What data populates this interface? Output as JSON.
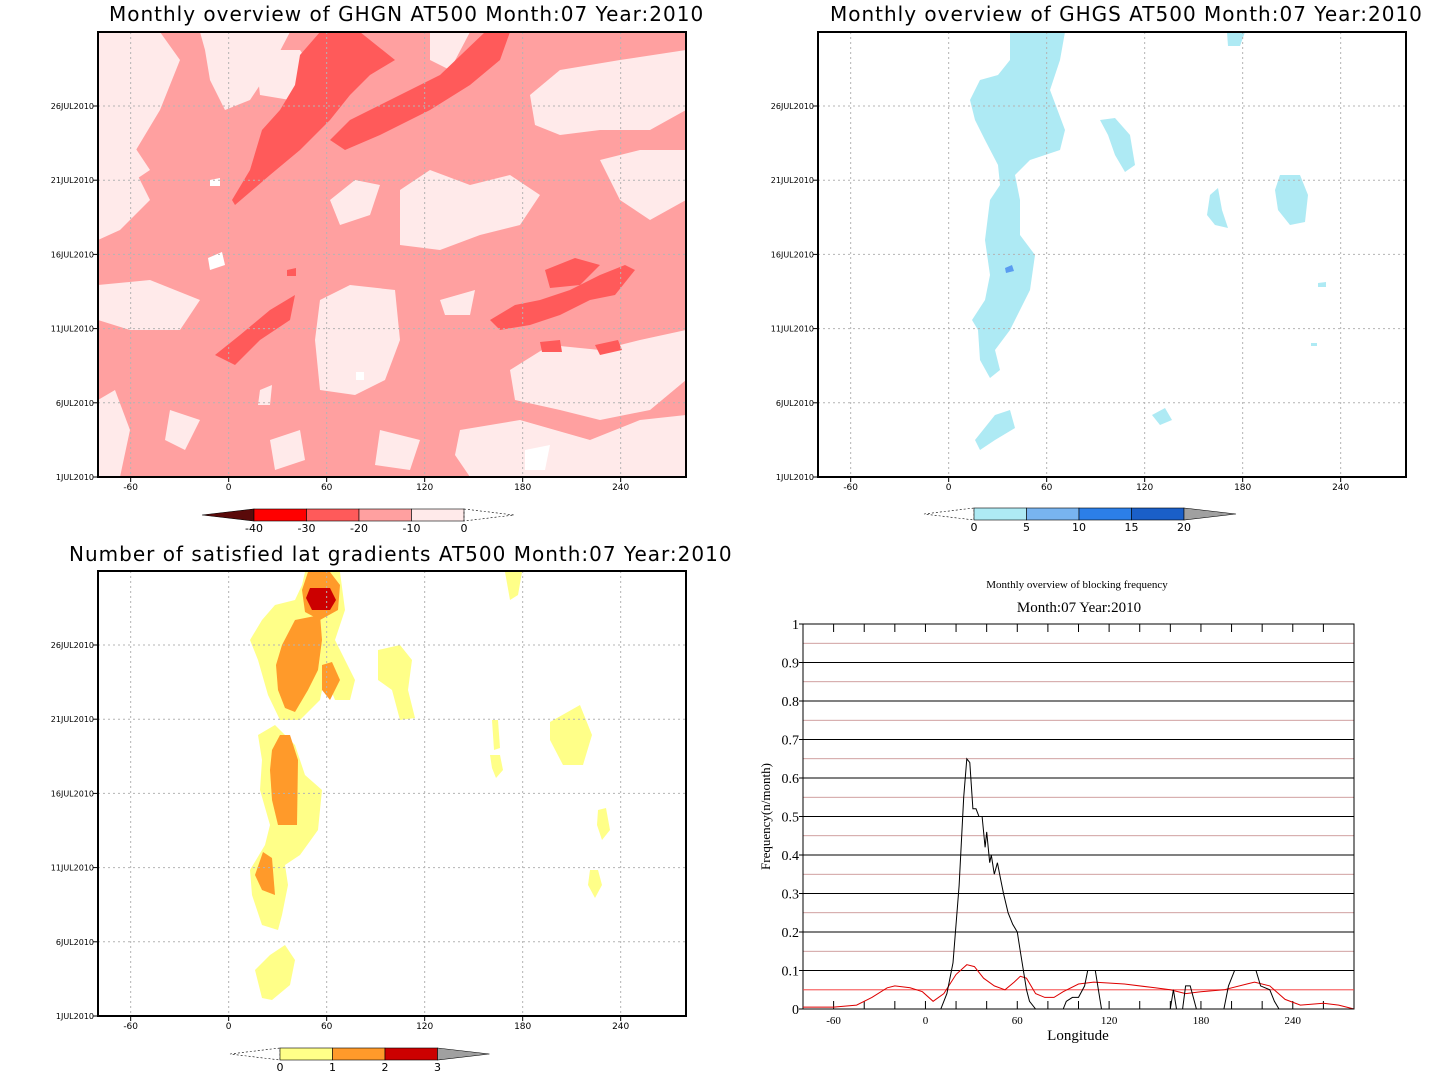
{
  "chart_data": [
    {
      "type": "heatmap",
      "title": "Monthly overview of GHGN AT500 Month:07 Year:2010",
      "xlabel": "",
      "ylabel": "",
      "xlim": [
        -80,
        280
      ],
      "x_ticks": [
        "-60",
        "0",
        "60",
        "120",
        "180",
        "240"
      ],
      "y_ticks": [
        "1JUL2010",
        "6JUL2010",
        "11JUL2010",
        "16JUL2010",
        "21JUL2010",
        "26JUL2010"
      ],
      "grid": true,
      "colorbar": {
        "labels": [
          "-40",
          "-30",
          "-20",
          "-10",
          "0"
        ],
        "colors": [
          "#5a0a0a",
          "#ff0000",
          "#ff5a5a",
          "#ffa0a0",
          "#ffeaea"
        ],
        "values": [
          -40,
          -30,
          -20,
          -10,
          0
        ]
      },
      "field_colors": {
        "bg": "#ffa0a0",
        "light": "#ffeaea",
        "mid": "#ff5a5a",
        "min": "#ffffff"
      }
    },
    {
      "type": "heatmap",
      "title": "Monthly overview of GHGS AT500 Month:07 Year:2010",
      "xlabel": "",
      "ylabel": "",
      "xlim": [
        -80,
        280
      ],
      "x_ticks": [
        "-60",
        "0",
        "60",
        "120",
        "180",
        "240"
      ],
      "y_ticks": [
        "1JUL2010",
        "6JUL2010",
        "11JUL2010",
        "16JUL2010",
        "21JUL2010",
        "26JUL2010"
      ],
      "grid": true,
      "colorbar": {
        "labels": [
          "0",
          "5",
          "10",
          "15",
          "20"
        ],
        "colors": [
          "#aeeaf4",
          "#78b4f0",
          "#2c7fe8",
          "#1a5fc8",
          "#a0a0a0"
        ],
        "values": [
          0,
          5,
          10,
          15,
          20
        ]
      },
      "field_colors": {
        "low": "#aeeaf4",
        "high": "#5a9cf0"
      }
    },
    {
      "type": "heatmap",
      "title": "Number of satisfied lat gradients AT500 Month:07 Year:2010",
      "xlabel": "",
      "ylabel": "",
      "xlim": [
        -80,
        280
      ],
      "x_ticks": [
        "-60",
        "0",
        "60",
        "120",
        "180",
        "240"
      ],
      "y_ticks": [
        "1JUL2010",
        "6JUL2010",
        "11JUL2010",
        "16JUL2010",
        "21JUL2010",
        "26JUL2010"
      ],
      "grid": true,
      "colorbar": {
        "labels": [
          "0",
          "1",
          "2",
          "3"
        ],
        "colors": [
          "#ffff88",
          "#ff9a2a",
          "#cc0000",
          "#a0a0a0"
        ],
        "values": [
          0,
          1,
          2,
          3
        ]
      },
      "field_colors": {
        "one": "#ffff88",
        "two": "#ff9a2a",
        "three": "#cc0000"
      }
    },
    {
      "type": "line",
      "title": "Monthly overview of blocking frequency",
      "subtitle": "Month:07 Year:2010",
      "xlabel": "Longitude",
      "ylabel": "Frequency(n/month)",
      "xlim": [
        -80,
        280
      ],
      "ylim": [
        0,
        1
      ],
      "x_ticks": [
        "-60",
        "0",
        "60",
        "120",
        "180",
        "240"
      ],
      "y_ticks": [
        "0",
        "0.1",
        "0.2",
        "0.3",
        "0.4",
        "0.5",
        "0.6",
        "0.7",
        "0.8",
        "0.9",
        "1"
      ],
      "grid": true,
      "series": [
        {
          "color": "#000000",
          "points": [
            [
              -80,
              0
            ],
            [
              10,
              0
            ],
            [
              14,
              0.04
            ],
            [
              18,
              0.12
            ],
            [
              22,
              0.32
            ],
            [
              25,
              0.55
            ],
            [
              27,
              0.65
            ],
            [
              29,
              0.64
            ],
            [
              31,
              0.52
            ],
            [
              33,
              0.52
            ],
            [
              35,
              0.5
            ],
            [
              37,
              0.5
            ],
            [
              39,
              0.42
            ],
            [
              40,
              0.46
            ],
            [
              42,
              0.38
            ],
            [
              43,
              0.4
            ],
            [
              45,
              0.35
            ],
            [
              47,
              0.38
            ],
            [
              49,
              0.34
            ],
            [
              51,
              0.3
            ],
            [
              54,
              0.25
            ],
            [
              57,
              0.22
            ],
            [
              60,
              0.2
            ],
            [
              62,
              0.15
            ],
            [
              64,
              0.1
            ],
            [
              66,
              0.05
            ],
            [
              68,
              0.02
            ],
            [
              72,
              0
            ],
            [
              90,
              0
            ],
            [
              92,
              0.02
            ],
            [
              96,
              0.03
            ],
            [
              100,
              0.03
            ],
            [
              104,
              0.06
            ],
            [
              106,
              0.1
            ],
            [
              111,
              0.1
            ],
            [
              113,
              0.05
            ],
            [
              115,
              0
            ],
            [
              160,
              0
            ],
            [
              162,
              0.05
            ],
            [
              164,
              0
            ],
            [
              168,
              0
            ],
            [
              170,
              0.06
            ],
            [
              173,
              0.06
            ],
            [
              175,
              0.03
            ],
            [
              177,
              0
            ],
            [
              195,
              0
            ],
            [
              198,
              0.06
            ],
            [
              202,
              0.1
            ],
            [
              216,
              0.1
            ],
            [
              219,
              0.06
            ],
            [
              225,
              0.05
            ],
            [
              228,
              0.02
            ],
            [
              231,
              0
            ],
            [
              280,
              0
            ]
          ]
        },
        {
          "color": "#dd0000",
          "points": [
            [
              -80,
              0.005
            ],
            [
              -60,
              0.005
            ],
            [
              -45,
              0.01
            ],
            [
              -35,
              0.03
            ],
            [
              -25,
              0.055
            ],
            [
              -20,
              0.06
            ],
            [
              -10,
              0.055
            ],
            [
              -2,
              0.045
            ],
            [
              5,
              0.02
            ],
            [
              12,
              0.04
            ],
            [
              20,
              0.09
            ],
            [
              27,
              0.115
            ],
            [
              32,
              0.11
            ],
            [
              38,
              0.08
            ],
            [
              45,
              0.06
            ],
            [
              52,
              0.05
            ],
            [
              58,
              0.07
            ],
            [
              62,
              0.085
            ],
            [
              66,
              0.08
            ],
            [
              72,
              0.04
            ],
            [
              78,
              0.03
            ],
            [
              84,
              0.03
            ],
            [
              90,
              0.045
            ],
            [
              100,
              0.065
            ],
            [
              110,
              0.07
            ],
            [
              130,
              0.065
            ],
            [
              150,
              0.055
            ],
            [
              160,
              0.05
            ],
            [
              170,
              0.04
            ],
            [
              180,
              0.045
            ],
            [
              195,
              0.05
            ],
            [
              210,
              0.065
            ],
            [
              215,
              0.07
            ],
            [
              225,
              0.06
            ],
            [
              235,
              0.025
            ],
            [
              245,
              0.01
            ],
            [
              260,
              0.015
            ],
            [
              270,
              0.01
            ],
            [
              280,
              0
            ]
          ]
        },
        {
          "color": "#ff4040",
          "points": [
            [
              -80,
              0.05
            ],
            [
              280,
              0.05
            ]
          ]
        }
      ]
    }
  ]
}
